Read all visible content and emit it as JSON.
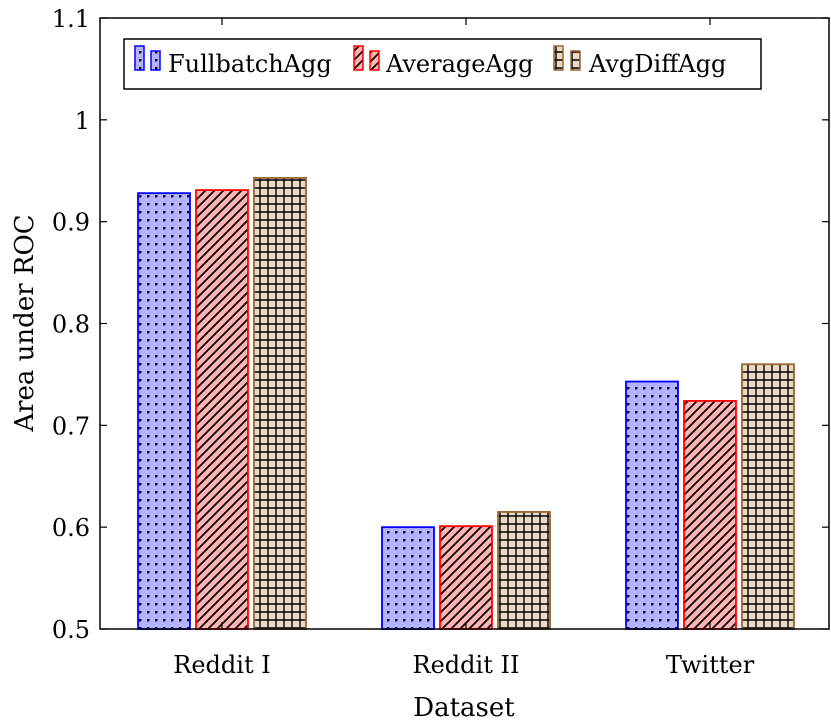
{
  "chart_data": {
    "type": "bar",
    "title": "",
    "xlabel": "Dataset",
    "ylabel": "Area under ROC",
    "categories": [
      "Reddit I",
      "Reddit II",
      "Twitter"
    ],
    "ylim": [
      0.5,
      1.1
    ],
    "yticks": [
      0.5,
      0.6,
      0.7,
      0.8,
      0.9,
      1,
      1.1
    ],
    "ytick_labels": [
      "0.5",
      "0.6",
      "0.7",
      "0.8",
      "0.9",
      "1",
      "1.1"
    ],
    "grid": false,
    "legend_position": "top-left",
    "series": [
      {
        "name": "FullbatchAgg",
        "values": [
          0.928,
          0.6,
          0.743
        ],
        "stroke": "#0000ff",
        "fill": "#b3b3ff",
        "pattern": "dots"
      },
      {
        "name": "AverageAgg",
        "values": [
          0.931,
          0.601,
          0.724
        ],
        "stroke": "#ff0000",
        "fill": "#ffb3b3",
        "pattern": "diagonal-lines"
      },
      {
        "name": "AvgDiffAgg",
        "values": [
          0.943,
          0.615,
          0.76
        ],
        "stroke": "#996633",
        "fill": "#ead9c5",
        "pattern": "grid"
      }
    ]
  }
}
